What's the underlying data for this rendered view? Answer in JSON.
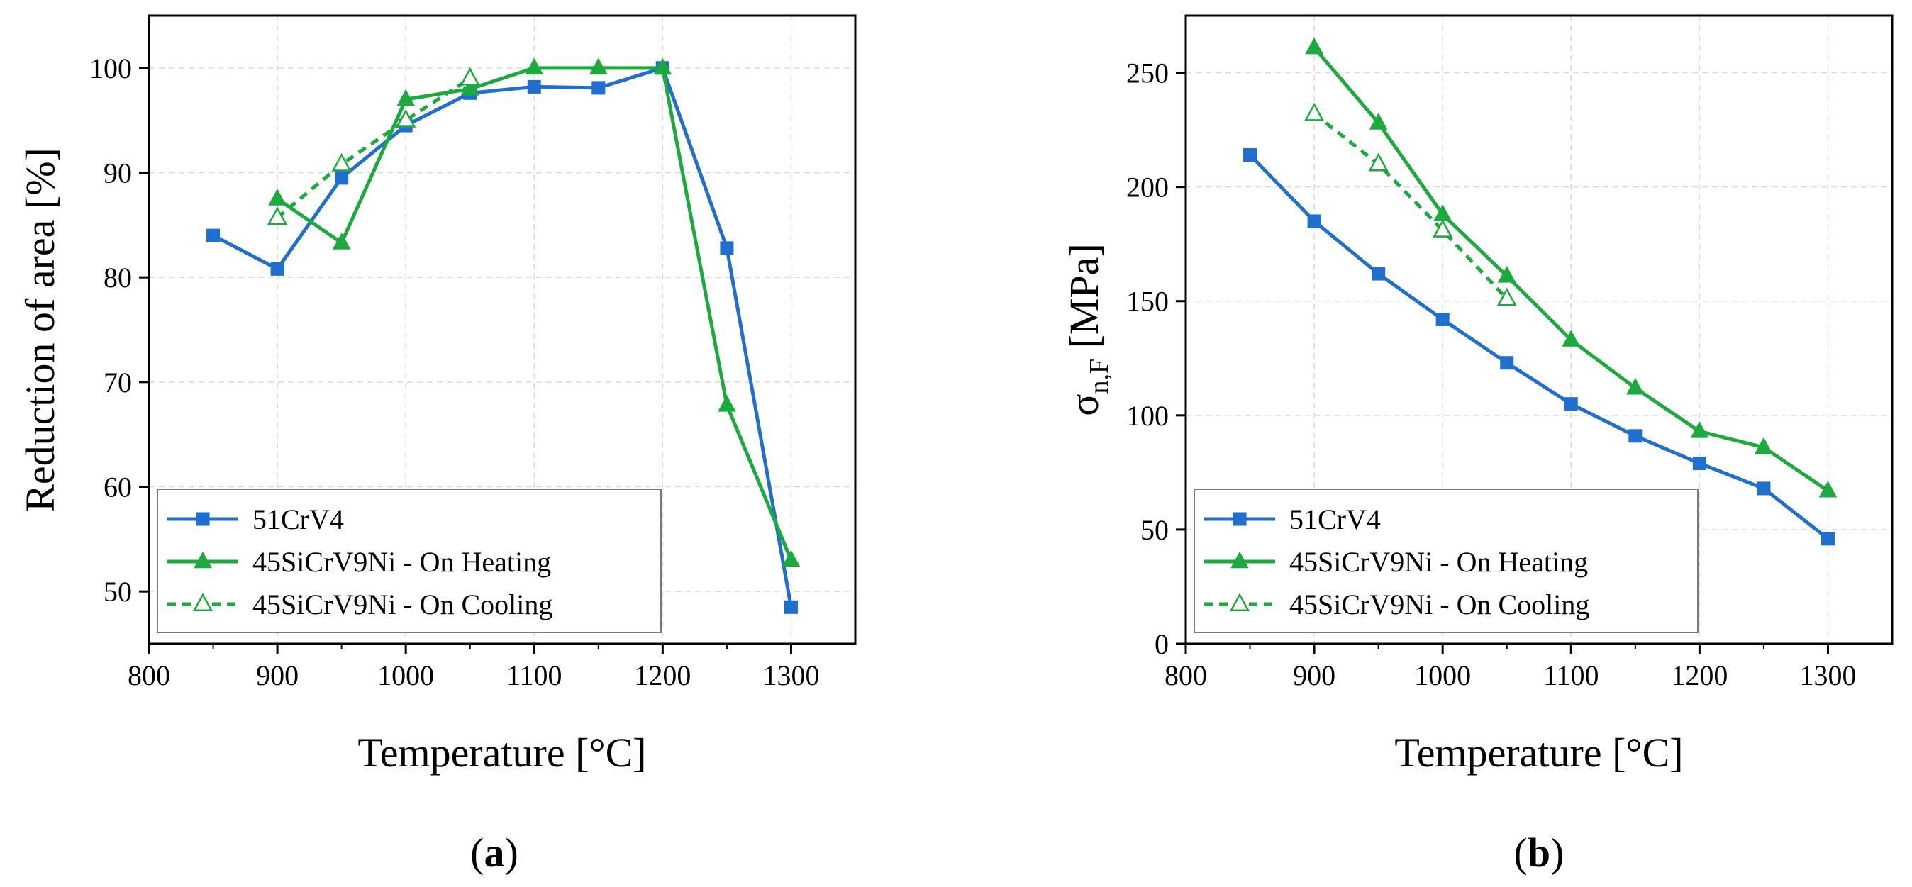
{
  "chart_data": [
    {
      "type": "line",
      "panel_label": {
        "open": "(",
        "letter": "a",
        "close": ")"
      },
      "xlabel": "Temperature [°C]",
      "ylabel": "Reduction of area [%]",
      "xlim": [
        800,
        1350
      ],
      "ylim": [
        45,
        105
      ],
      "xticks": [
        800,
        900,
        1000,
        1100,
        1200,
        1300
      ],
      "yticks": [
        50,
        60,
        70,
        80,
        90,
        100
      ],
      "grid": true,
      "legend_position": "bottom-left",
      "series": [
        {
          "name": "51CrV4",
          "color": "#1f6fd0",
          "marker": "square-filled",
          "dash": false,
          "x": [
            850,
            900,
            950,
            1000,
            1050,
            1100,
            1150,
            1200,
            1250,
            1300
          ],
          "y": [
            84.0,
            80.8,
            89.5,
            94.5,
            97.6,
            98.2,
            98.1,
            100.0,
            82.8,
            48.5
          ]
        },
        {
          "name": "45SiCrV9Ni - On Heating",
          "color": "#1aab3c",
          "marker": "triangle-filled",
          "dash": false,
          "x": [
            900,
            950,
            1000,
            1050,
            1100,
            1150,
            1200,
            1250,
            1300
          ],
          "y": [
            87.5,
            83.3,
            97.0,
            98.0,
            100.0,
            100.0,
            100.0,
            67.8,
            53.0
          ]
        },
        {
          "name": "45SiCrV9Ni - On Cooling",
          "color": "#1aab3c",
          "marker": "triangle-open",
          "dash": true,
          "x": [
            900,
            950,
            1000,
            1050
          ],
          "y": [
            85.7,
            90.8,
            95.0,
            99.0
          ]
        }
      ]
    },
    {
      "type": "line",
      "panel_label": {
        "open": "(",
        "letter": "b",
        "close": ")"
      },
      "xlabel": "Temperature [°C]",
      "ylabel_main": "σ",
      "ylabel_sub": "n,F",
      "ylabel_unit": " [MPa]",
      "xlim": [
        800,
        1350
      ],
      "ylim": [
        0,
        275
      ],
      "xticks": [
        800,
        900,
        1000,
        1100,
        1200,
        1300
      ],
      "yticks": [
        0,
        50,
        100,
        150,
        200,
        250
      ],
      "grid": true,
      "legend_position": "bottom-left",
      "series": [
        {
          "name": "51CrV4",
          "color": "#1f6fd0",
          "marker": "square-filled",
          "dash": false,
          "x": [
            850,
            900,
            950,
            1000,
            1050,
            1100,
            1150,
            1200,
            1250,
            1300
          ],
          "y": [
            214,
            185,
            162,
            142,
            123,
            105,
            91,
            79,
            68,
            46
          ]
        },
        {
          "name": "45SiCrV9Ni - On Heating",
          "color": "#1aab3c",
          "marker": "triangle-filled",
          "dash": false,
          "x": [
            900,
            950,
            1000,
            1050,
            1100,
            1150,
            1200,
            1250,
            1300
          ],
          "y": [
            261,
            228,
            188,
            161,
            133,
            112,
            93,
            86,
            67
          ]
        },
        {
          "name": "45SiCrV9Ni - On Cooling",
          "color": "#1aab3c",
          "marker": "triangle-open",
          "dash": true,
          "x": [
            900,
            950,
            1000,
            1050
          ],
          "y": [
            232,
            210,
            181,
            151
          ]
        }
      ]
    }
  ]
}
